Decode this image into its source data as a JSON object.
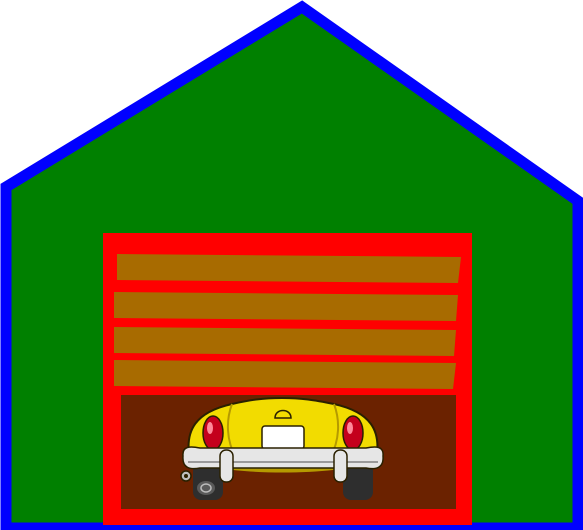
{
  "scene": {
    "subject": "garage-with-car",
    "colors": {
      "background": "#ffffff",
      "wall_fill": "#008000",
      "wall_outline": "#0000ff",
      "door_frame": "#ff0000",
      "door_panel": "#a86b00",
      "garage_interior": "#6b2200",
      "car_body": "#f2dc00",
      "car_body_shadow": "#b59a00",
      "bumper": "#e6e6e6",
      "bumper_shadow": "#9a9a9a",
      "tail_light": "#c4001c",
      "tire": "#2e2e2e",
      "license_plate": "#ffffff"
    },
    "door": {
      "panel_count": 4,
      "open_fraction": 0.36
    },
    "icons": [
      "house-icon",
      "garage-door-icon",
      "car-icon"
    ]
  }
}
